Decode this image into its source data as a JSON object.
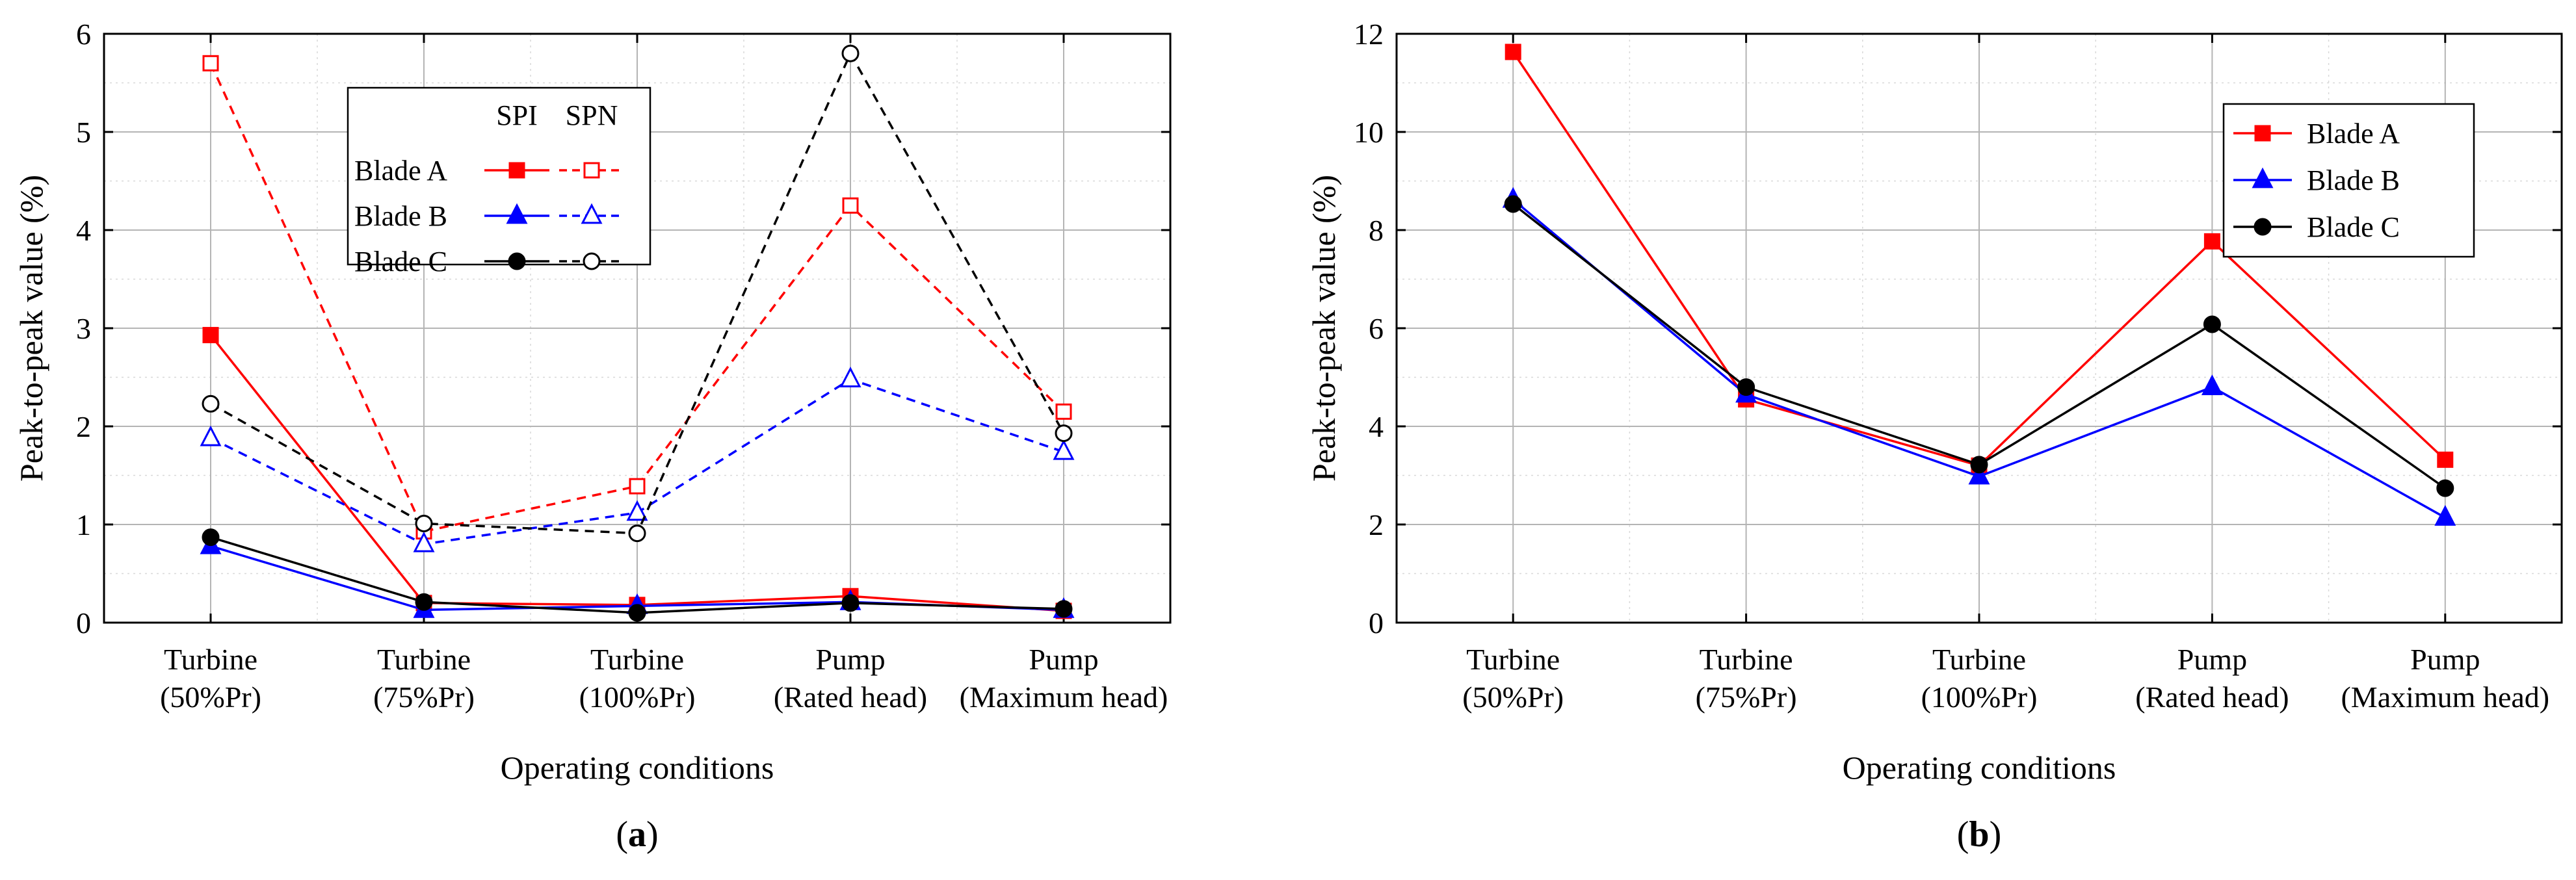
{
  "chart_data": [
    {
      "id": "a",
      "type": "line",
      "panel_label": "a",
      "xlabel": "Operating conditions",
      "ylabel": "Peak-to-peak value (%)",
      "ylim": [
        0,
        6
      ],
      "yticks": [
        "0",
        "1",
        "2",
        "3",
        "4",
        "5",
        "6"
      ],
      "categories": [
        [
          "Turbine",
          "(50%Pr)"
        ],
        [
          "Turbine",
          "(75%Pr)"
        ],
        [
          "Turbine",
          "(100%Pr)"
        ],
        [
          "Pump",
          "(Rated head)"
        ],
        [
          "Pump",
          "(Maximum head)"
        ]
      ],
      "grid": true,
      "legend": {
        "position": "top-left-center",
        "col_headers": [
          "SPI",
          "SPN"
        ],
        "rows": [
          "Blade A",
          "Blade B",
          "Blade C"
        ]
      },
      "series": [
        {
          "name": "Blade A",
          "group": "SPI",
          "color": "#ff0000",
          "marker": "square",
          "filled": true,
          "dashed": false,
          "values": [
            2.93,
            0.2,
            0.18,
            0.27,
            0.12
          ]
        },
        {
          "name": "Blade B",
          "group": "SPI",
          "color": "#0000ff",
          "marker": "triangle",
          "filled": true,
          "dashed": false,
          "values": [
            0.78,
            0.13,
            0.17,
            0.21,
            0.13
          ]
        },
        {
          "name": "Blade C",
          "group": "SPI",
          "color": "#000000",
          "marker": "circle",
          "filled": true,
          "dashed": false,
          "values": [
            0.87,
            0.21,
            0.1,
            0.2,
            0.14
          ]
        },
        {
          "name": "Blade A",
          "group": "SPN",
          "color": "#ff0000",
          "marker": "square",
          "filled": false,
          "dashed": true,
          "values": [
            5.7,
            0.93,
            1.39,
            4.25,
            2.15
          ]
        },
        {
          "name": "Blade B",
          "group": "SPN",
          "color": "#0000ff",
          "marker": "triangle",
          "filled": false,
          "dashed": true,
          "values": [
            1.88,
            0.8,
            1.12,
            2.48,
            1.74
          ]
        },
        {
          "name": "Blade C",
          "group": "SPN",
          "color": "#000000",
          "marker": "circle",
          "filled": false,
          "dashed": true,
          "values": [
            2.23,
            1.01,
            0.91,
            5.8,
            1.93
          ]
        }
      ]
    },
    {
      "id": "b",
      "type": "line",
      "panel_label": "b",
      "xlabel": "Operating conditions",
      "ylabel": "Peak-to-peak value (%)",
      "ylim": [
        0,
        12
      ],
      "yticks": [
        "0",
        "2",
        "4",
        "6",
        "8",
        "10",
        "12"
      ],
      "categories": [
        [
          "Turbine",
          "(50%Pr)"
        ],
        [
          "Turbine",
          "(75%Pr)"
        ],
        [
          "Turbine",
          "(100%Pr)"
        ],
        [
          "Pump",
          "(Rated head)"
        ],
        [
          "Pump",
          "(Maximum head)"
        ]
      ],
      "grid": true,
      "legend": {
        "position": "top-right",
        "rows": [
          "Blade A",
          "Blade B",
          "Blade C"
        ]
      },
      "series": [
        {
          "name": "Blade A",
          "color": "#ff0000",
          "marker": "square",
          "filled": true,
          "dashed": false,
          "values": [
            11.63,
            4.55,
            3.2,
            7.77,
            3.32
          ]
        },
        {
          "name": "Blade B",
          "color": "#0000ff",
          "marker": "triangle",
          "filled": true,
          "dashed": false,
          "values": [
            8.62,
            4.65,
            2.98,
            4.8,
            2.14
          ]
        },
        {
          "name": "Blade C",
          "color": "#000000",
          "marker": "circle",
          "filled": true,
          "dashed": false,
          "values": [
            8.53,
            4.8,
            3.22,
            6.08,
            2.74
          ]
        }
      ]
    }
  ]
}
